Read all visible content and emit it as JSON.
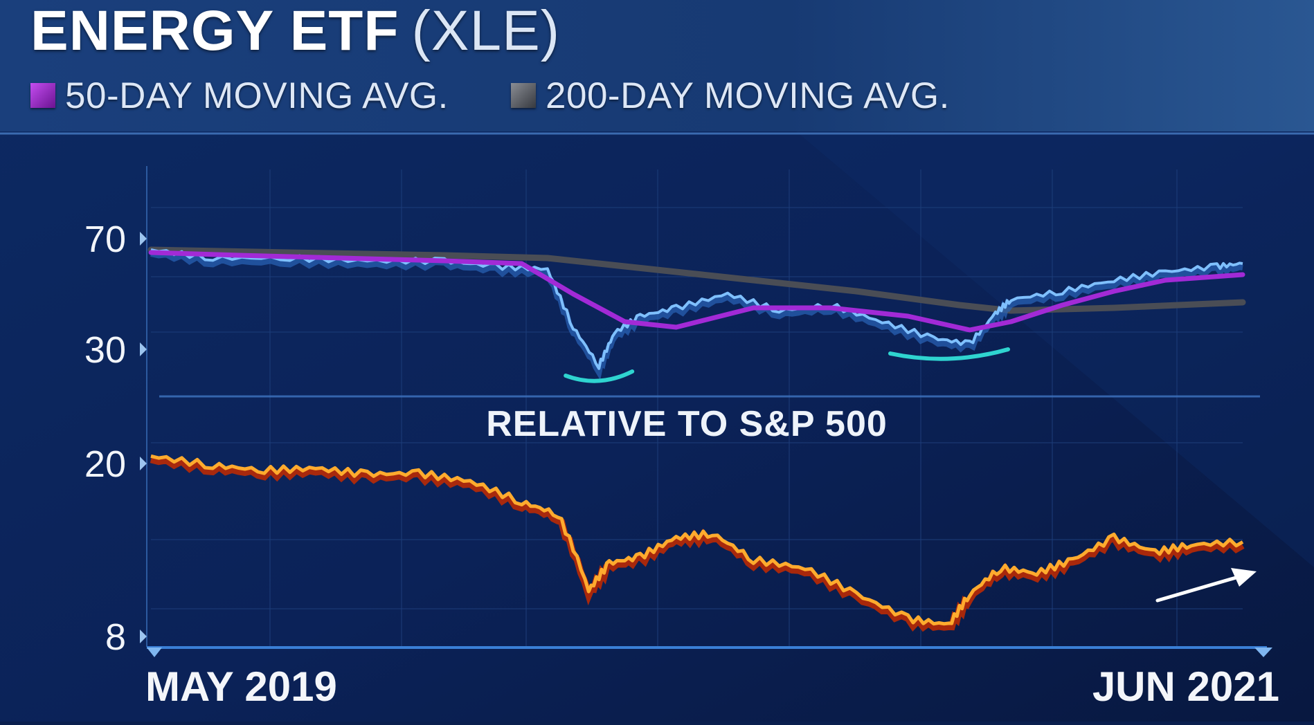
{
  "header": {
    "title": "ENERGY ETF",
    "ticker": "(XLE)"
  },
  "legend": [
    {
      "label": "50-DAY MOVING AVG.",
      "color": "#8e1fb8"
    },
    {
      "label": "200-DAY MOVING AVG.",
      "color": "#5c5f66"
    }
  ],
  "colors": {
    "background": "#0a1f4e",
    "price_line": "#7fc0ff",
    "ma50": "#a22ad6",
    "ma200": "#4a4d55",
    "relative_line": "#ffab2e",
    "relative_shadow": "#c42a00",
    "low_marker": "#2fd4d0",
    "arrow": "#ffffff"
  },
  "chart_data": [
    {
      "type": "line",
      "title": "ENERGY ETF (XLE)",
      "x_start": "MAY 2019",
      "x_end": "JUN 2021",
      "y_ticks": [
        70,
        30
      ],
      "series": [
        {
          "name": "XLE",
          "x": [
            2019.33,
            2019.45,
            2019.6,
            2019.75,
            2019.9,
            2020.0,
            2020.1,
            2020.15,
            2020.2,
            2020.23,
            2020.28,
            2020.35,
            2020.45,
            2020.55,
            2020.65,
            2020.75,
            2020.85,
            2020.92,
            2020.97,
            2021.0,
            2021.1,
            2021.2,
            2021.3,
            2021.4,
            2021.45
          ],
          "values": [
            66,
            63,
            63,
            62,
            62,
            60,
            59,
            38,
            24,
            36,
            42,
            45,
            50,
            44,
            46,
            40,
            34,
            32,
            43,
            48,
            51,
            55,
            58,
            60,
            61
          ]
        },
        {
          "name": "50-DAY MOVING AVG.",
          "x": [
            2019.33,
            2019.5,
            2019.7,
            2019.9,
            2020.05,
            2020.15,
            2020.25,
            2020.35,
            2020.5,
            2020.65,
            2020.8,
            2020.92,
            2021.0,
            2021.1,
            2021.2,
            2021.3,
            2021.45
          ],
          "values": [
            65,
            64,
            63,
            62,
            61,
            50,
            40,
            38,
            45,
            45,
            42,
            37,
            40,
            46,
            51,
            55,
            57
          ]
        },
        {
          "name": "200-DAY MOVING AVG.",
          "x": [
            2019.33,
            2019.6,
            2019.9,
            2020.1,
            2020.3,
            2020.5,
            2020.7,
            2020.9,
            2021.0,
            2021.2,
            2021.45
          ],
          "values": [
            66,
            65,
            64,
            63,
            59,
            55,
            51,
            46,
            44,
            45,
            47
          ]
        }
      ],
      "lows": [
        {
          "x": 2020.2,
          "value": 24
        },
        {
          "x": 2020.88,
          "value": 32
        }
      ]
    },
    {
      "type": "line",
      "title": "RELATIVE TO S&P 500",
      "y_ticks": [
        20,
        8
      ],
      "series": [
        {
          "name": "",
          "x": [
            2019.33,
            2019.45,
            2019.55,
            2019.65,
            2019.75,
            2019.85,
            2019.95,
            2020.05,
            2020.12,
            2020.18,
            2020.22,
            2020.28,
            2020.35,
            2020.42,
            2020.5,
            2020.6,
            2020.7,
            2020.8,
            2020.88,
            2020.92,
            2020.98,
            2021.05,
            2021.12,
            2021.2,
            2021.28,
            2021.35,
            2021.45
          ],
          "values": [
            20.8,
            19.8,
            19.3,
            19.5,
            18.9,
            19.0,
            18.2,
            16.3,
            15.3,
            10.2,
            11.8,
            12.2,
            13.5,
            13.8,
            12.0,
            11.5,
            10.0,
            8.8,
            8.5,
            10.0,
            11.5,
            11.2,
            12.0,
            13.5,
            12.5,
            13.0,
            13.2
          ]
        }
      ],
      "trend_arrow": "up"
    }
  ]
}
